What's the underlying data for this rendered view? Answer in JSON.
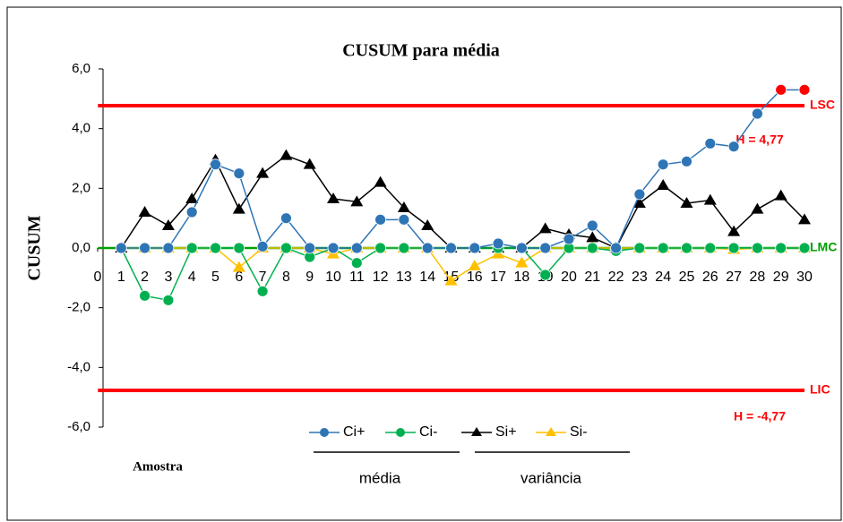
{
  "chart_data": {
    "type": "line",
    "title": "CUSUM para média",
    "x_label": "Amostra",
    "y_label": "CUSUM",
    "x": [
      1,
      2,
      3,
      4,
      5,
      6,
      7,
      8,
      9,
      10,
      11,
      12,
      13,
      14,
      15,
      16,
      17,
      18,
      19,
      20,
      21,
      22,
      23,
      24,
      25,
      26,
      27,
      28,
      29,
      30
    ],
    "xlim": [
      0,
      30
    ],
    "xticks": [
      0,
      1,
      2,
      3,
      4,
      5,
      6,
      7,
      8,
      9,
      10,
      11,
      12,
      13,
      14,
      15,
      16,
      17,
      18,
      19,
      20,
      21,
      22,
      23,
      24,
      25,
      26,
      27,
      28,
      29,
      30
    ],
    "ylim": [
      -6,
      6
    ],
    "yticks": [
      {
        "value": -6,
        "label": "-6,0"
      },
      {
        "value": -4,
        "label": "-4,0"
      },
      {
        "value": -2,
        "label": "-2,0"
      },
      {
        "value": 0,
        "label": "0,0"
      },
      {
        "value": 2,
        "label": "2,0"
      },
      {
        "value": 4,
        "label": "4,0"
      },
      {
        "value": 6,
        "label": "6,0"
      }
    ],
    "series": [
      {
        "name": "Ci+",
        "color": "#2e75b6",
        "marker": "circle",
        "values": [
          0,
          0,
          0,
          1.2,
          2.8,
          2.5,
          0.05,
          1.0,
          0,
          0,
          0,
          0.95,
          0.95,
          0,
          0,
          0,
          0.15,
          0,
          0,
          0.3,
          0.75,
          0,
          1.8,
          2.8,
          2.9,
          3.5,
          3.4,
          4.5,
          5.3,
          5.3
        ]
      },
      {
        "name": "Ci-",
        "color": "#00b050",
        "marker": "circle",
        "values": [
          0,
          -1.6,
          -1.75,
          0,
          0,
          0,
          -1.45,
          0,
          -0.3,
          0,
          -0.5,
          0,
          0,
          0,
          0,
          0,
          0,
          0,
          -0.9,
          0,
          0,
          -0.1,
          0,
          0,
          0,
          0,
          0,
          0,
          0,
          0
        ]
      },
      {
        "name": "Si+",
        "color": "#000000",
        "marker": "triangle",
        "values": [
          0,
          1.2,
          0.75,
          1.65,
          2.95,
          1.3,
          2.5,
          3.1,
          2.8,
          1.65,
          1.55,
          2.2,
          1.35,
          0.75,
          0,
          0,
          0,
          0,
          0.65,
          0.45,
          0.35,
          0,
          1.5,
          2.1,
          1.5,
          1.6,
          0.55,
          1.3,
          1.75,
          0.95
        ]
      },
      {
        "name": "Si-",
        "color": "#ffc000",
        "marker": "triangle",
        "values": [
          0,
          0,
          0,
          0,
          0,
          -0.65,
          0,
          0,
          0,
          -0.2,
          0,
          0,
          0,
          0,
          -1.1,
          -0.6,
          -0.2,
          -0.5,
          0,
          0,
          0,
          0,
          0,
          0,
          0,
          0,
          -0.05,
          0,
          0,
          0
        ]
      }
    ],
    "out_of_control_color": "#ff0000",
    "control_lines": [
      {
        "name": "LSC",
        "value": 4.77,
        "color": "#ff0000"
      },
      {
        "name": "LMC",
        "value": 0,
        "color": "#00a000"
      },
      {
        "name": "LIC",
        "value": -4.77,
        "color": "#ff0000"
      }
    ],
    "annotations": [
      "H = 4,77",
      "H = -4,77"
    ],
    "legend_groups": [
      "média",
      "variância"
    ]
  }
}
